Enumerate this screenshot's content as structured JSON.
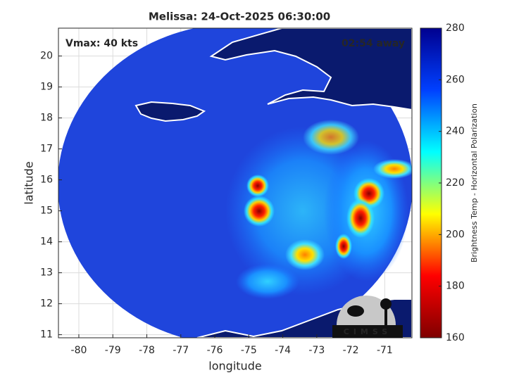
{
  "chart_data": {
    "type": "map",
    "title": "Melissa: 24-Oct-2025 06:30:00",
    "annotations": [
      "Vmax: 40 kts",
      "02:54 away"
    ],
    "xlabel": "longitude",
    "ylabel": "latitude",
    "xlim": [
      -80.6,
      -70.2
    ],
    "ylim": [
      10.9,
      20.9
    ],
    "xticks": [
      -80,
      -79,
      -78,
      -77,
      -76,
      -75,
      -74,
      -73,
      -72,
      -71
    ],
    "yticks": [
      11,
      12,
      13,
      14,
      15,
      16,
      17,
      18,
      19,
      20
    ],
    "grid": true,
    "colorbar": {
      "label": "Brightness Temp - Horizontal Polarization",
      "lim": [
        160,
        280
      ],
      "ticks": [
        160,
        180,
        200,
        220,
        240,
        260,
        280
      ],
      "colors": [
        "#7f0000",
        "#ff0000",
        "#ffff00",
        "#00ffff",
        "#0040ff",
        "#00008f"
      ]
    },
    "logo": "CIMSS"
  }
}
